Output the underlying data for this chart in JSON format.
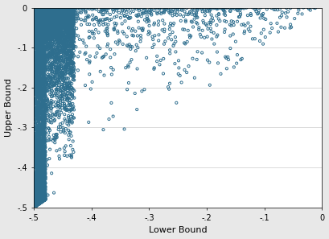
{
  "xlabel": "Lower Bound",
  "ylabel": "Upper Bound",
  "xlim": [
    -0.5,
    0.0
  ],
  "ylim": [
    -0.5,
    0.0
  ],
  "xticks": [
    -0.5,
    -0.4,
    -0.3,
    -0.2,
    -0.1,
    0.0
  ],
  "yticks": [
    -0.5,
    -0.4,
    -0.3,
    -0.2,
    -0.1,
    0.0
  ],
  "xtick_labels": [
    "-.5",
    "-.4",
    "-.3",
    "-.2",
    "-.1",
    "0"
  ],
  "ytick_labels": [
    "-.5",
    "-.4",
    "-.3",
    "-.2",
    "-.1",
    "0"
  ],
  "marker_color": "#2E6E8E",
  "marker_facecolor": "none",
  "marker_size": 5,
  "marker_linewidth": 0.7,
  "background_color": "#E8E8E8",
  "plot_bg_color": "#FFFFFF",
  "seed": 42,
  "xlabel_fontsize": 8,
  "ylabel_fontsize": 8,
  "tick_fontsize": 7,
  "grid_color": "#CCCCCC",
  "grid_linewidth": 0.5
}
